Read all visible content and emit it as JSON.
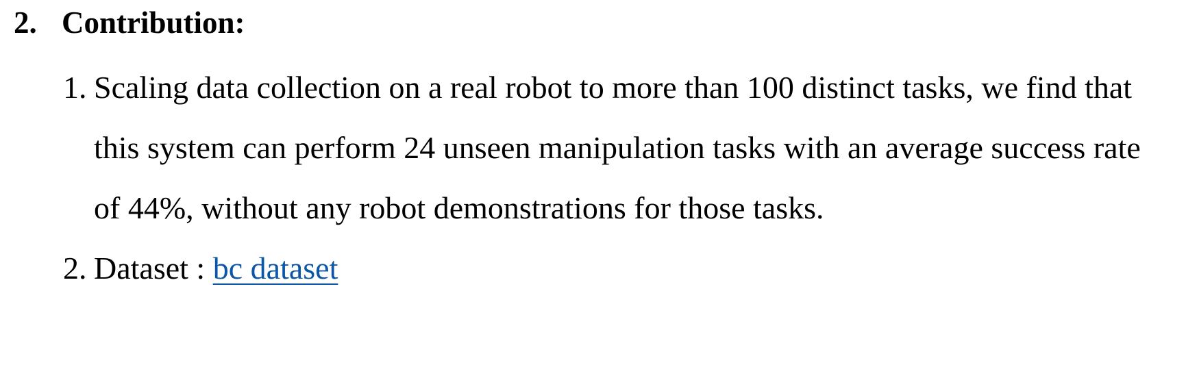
{
  "heading": {
    "number": "2.",
    "title": "Contribution:"
  },
  "items": [
    {
      "marker": "1.",
      "text": "Scaling data collection on a real robot to more than 100 distinct tasks, we find that this system can perform 24 unseen manipulation tasks with an average success rate of 44%, without any robot demonstrations for those tasks."
    },
    {
      "marker": "2.",
      "label": "Dataset :",
      "link_text": "bc dataset"
    }
  ],
  "colors": {
    "text": "#000000",
    "link": "#0b56a6",
    "background": "#ffffff"
  }
}
